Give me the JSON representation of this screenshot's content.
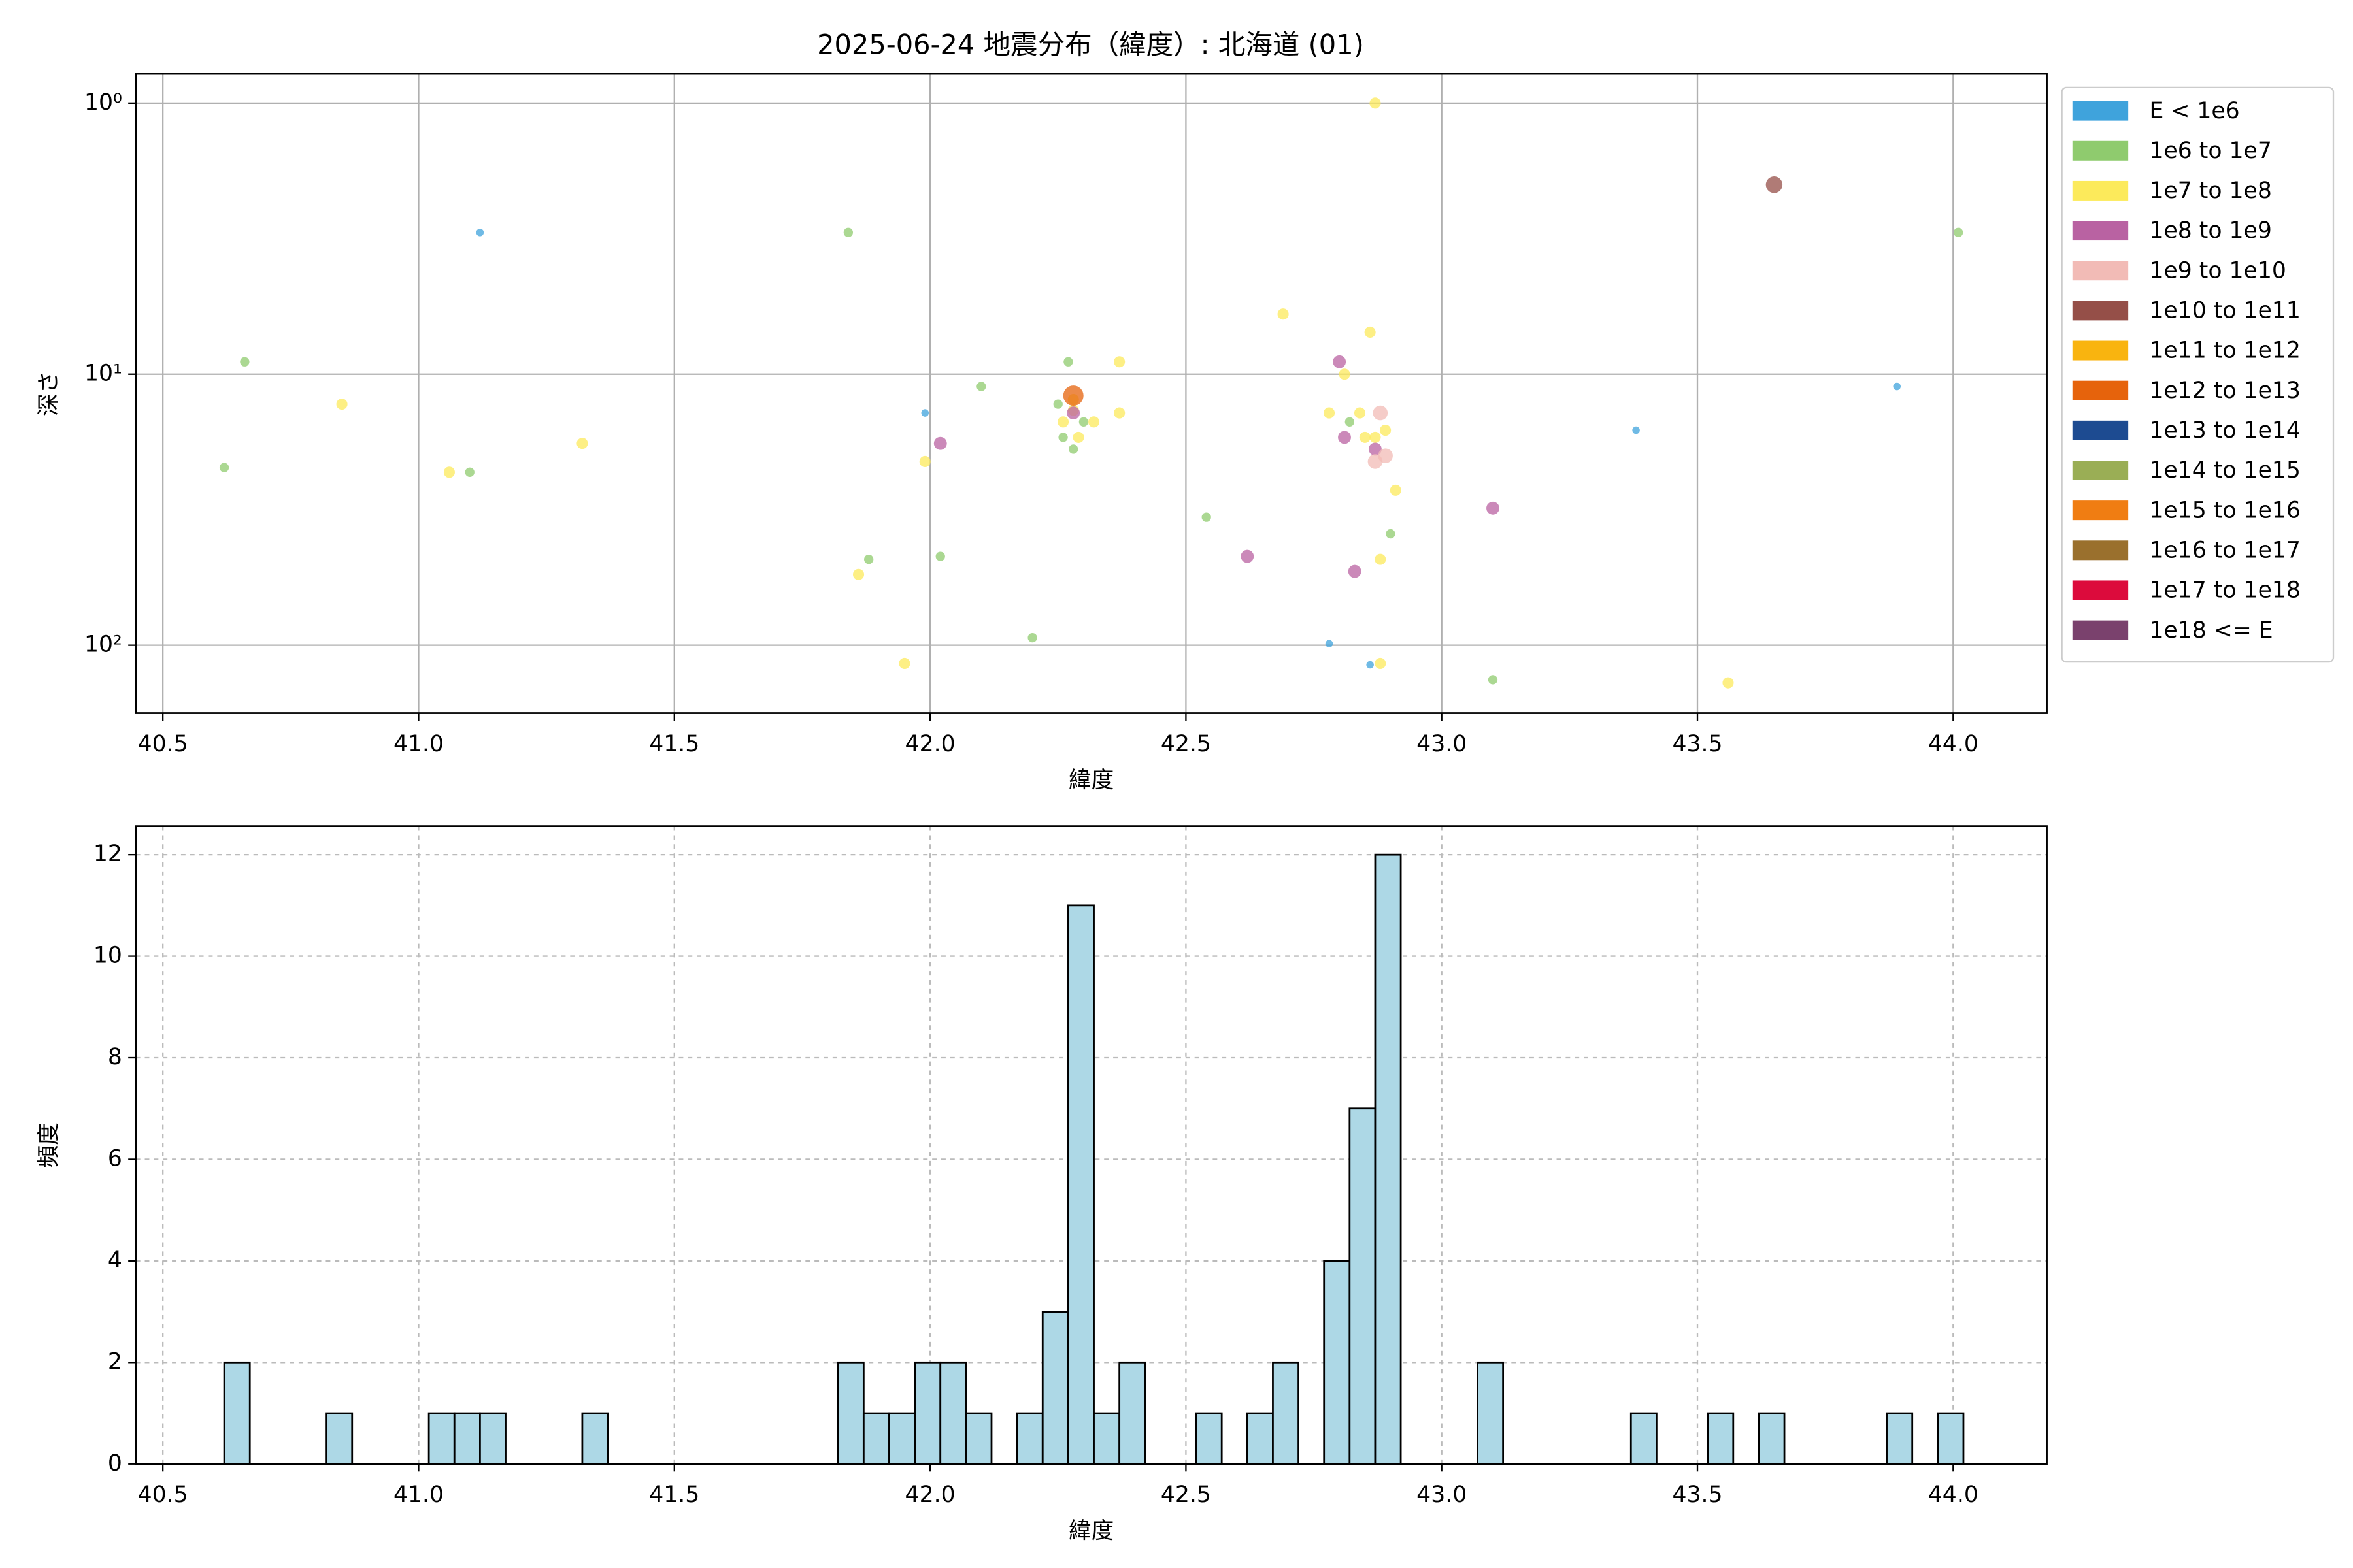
{
  "chart_data": [
    {
      "type": "scatter",
      "title": "2025-06-24 地震分布（緯度）: 北海道 (01)",
      "xlabel": "緯度",
      "ylabel": "深さ",
      "xlim": [
        40.447,
        44.183
      ],
      "xticks": [
        40.5,
        {
          "value": 41,
          "label": "41.0"
        },
        41.5,
        {
          "value": 42,
          "label": "42.0"
        },
        42.5,
        {
          "value": 43,
          "label": "43.0"
        },
        43.5,
        {
          "value": 44,
          "label": "44.0"
        }
      ],
      "ylim": [
        0.78,
        178
      ],
      "ylog": true,
      "yinvert": true,
      "yticks": [
        {
          "value": 1,
          "label": "10⁰"
        },
        {
          "value": 10,
          "label": "10¹"
        },
        {
          "value": 100,
          "label": "10²"
        }
      ],
      "grid": true,
      "grid_linestyle": "solid",
      "legend": "outside upper right",
      "series": [
        {
          "name": "E < 1e6",
          "color": "#3fa3dc",
          "x": [
            41.12,
            41.99,
            42.78,
            42.86,
            43.38,
            43.89
          ],
          "values": [
            3.0,
            13.9,
            98.7,
            118,
            16.1,
            11.1
          ]
        },
        {
          "name": "1e6 to 1e7",
          "color": "#8fcb6e",
          "x": [
            40.66,
            40.62,
            41.1,
            41.84,
            41.88,
            42.02,
            42.1,
            42.2,
            42.25,
            42.27,
            42.26,
            42.28,
            42.3,
            42.54,
            42.82,
            42.9,
            43.1,
            44.01
          ],
          "values": [
            9.0,
            22.1,
            23.0,
            3.0,
            48.2,
            47.0,
            11.1,
            93.8,
            12.9,
            9.0,
            17.1,
            18.9,
            15.0,
            33.7,
            15.0,
            38.8,
            134,
            3.0
          ]
        },
        {
          "name": "1e7 to 1e8",
          "color": "#fcea5b",
          "x": [
            40.85,
            41.06,
            41.32,
            41.86,
            41.95,
            41.99,
            42.26,
            42.28,
            42.28,
            42.29,
            42.32,
            42.37,
            42.37,
            42.69,
            42.78,
            42.81,
            42.84,
            42.86,
            42.85,
            42.87,
            42.89,
            42.91,
            42.88,
            42.88,
            42.87,
            43.56
          ],
          "values": [
            12.9,
            23.0,
            18.0,
            54.8,
            116.7,
            21.0,
            15.0,
            13.6,
            12.4,
            17.1,
            15.0,
            9.0,
            13.9,
            6.0,
            13.9,
            10,
            13.9,
            7.0,
            17.1,
            17.1,
            16.1,
            26.8,
            48.2,
            116.7,
            1.0,
            137.6
          ]
        },
        {
          "name": "1e8 to 1e9",
          "color": "#b962a2",
          "x": [
            42.02,
            42.28,
            42.62,
            42.8,
            42.81,
            42.83,
            42.87,
            43.1
          ],
          "values": [
            18.0,
            13.9,
            47.0,
            9.0,
            17.1,
            53.4,
            18.9,
            31.2
          ]
        },
        {
          "name": "1e9 to 1e10",
          "color": "#f2bbb6",
          "x": [
            42.88,
            42.87,
            42.89
          ],
          "values": [
            13.9,
            21.0,
            20.0
          ]
        },
        {
          "name": "1e10 to 1e11",
          "color": "#954f48",
          "x": [
            43.65
          ],
          "values": [
            2.0
          ]
        },
        {
          "name": "1e11 to 1e12",
          "color": "#f9b40f",
          "x": [],
          "values": []
        },
        {
          "name": "1e12 to 1e13",
          "color": "#e6630c",
          "x": [
            42.28
          ],
          "values": [
            12.0
          ]
        },
        {
          "name": "1e13 to 1e14",
          "color": "#1d4b91",
          "x": [],
          "values": []
        },
        {
          "name": "1e14 to 1e15",
          "color": "#9aae55",
          "x": [],
          "values": []
        },
        {
          "name": "1e15 to 1e16",
          "color": "#f07d12",
          "x": [],
          "values": []
        },
        {
          "name": "1e16 to 1e17",
          "color": "#9a702d",
          "x": [],
          "values": []
        },
        {
          "name": "1e17 to 1e18",
          "color": "#dc0b3c",
          "x": [],
          "values": []
        },
        {
          "name": "1e18 <= E",
          "color": "#7a416d",
          "x": [],
          "values": []
        }
      ]
    },
    {
      "type": "histogram",
      "xlabel": "緯度",
      "ylabel": "頻度",
      "xlim": [
        40.447,
        44.183
      ],
      "xticks": [
        40.5,
        {
          "value": 41,
          "label": "41.0"
        },
        41.5,
        {
          "value": 42,
          "label": "42.0"
        },
        42.5,
        {
          "value": 43,
          "label": "43.0"
        },
        43.5,
        {
          "value": 44,
          "label": "44.0"
        }
      ],
      "ylim": [
        0,
        12.56
      ],
      "yticks": [
        0,
        2,
        4,
        6,
        8,
        10,
        12
      ],
      "grid": true,
      "grid_linestyle": "dashed",
      "color": "#add8e6",
      "edgecolor": "#000000",
      "bins": [
        40.62,
        40.67,
        40.72,
        40.77,
        40.82,
        40.87,
        40.92,
        40.97,
        41.02,
        41.07,
        41.12,
        41.17,
        41.22,
        41.27,
        41.32,
        41.37,
        41.42,
        41.47,
        41.52,
        41.57,
        41.62,
        41.67,
        41.72,
        41.77,
        41.82,
        41.87,
        41.92,
        41.97,
        42.02,
        42.07,
        42.12,
        42.17,
        42.22,
        42.27,
        42.32,
        42.37,
        42.42,
        42.47,
        42.52,
        42.57,
        42.62,
        42.67,
        42.72,
        42.77,
        42.82,
        42.87,
        42.92,
        42.97,
        43.02,
        43.07,
        43.12,
        43.17,
        43.22,
        43.27,
        43.32,
        43.37,
        43.42,
        43.47,
        43.52,
        43.57,
        43.62,
        43.67,
        43.72,
        43.77,
        43.82,
        43.87,
        43.92,
        43.97,
        44.02
      ],
      "values": [
        2,
        0,
        0,
        0,
        1,
        0,
        0,
        0,
        1,
        1,
        1,
        0,
        0,
        0,
        1,
        0,
        0,
        0,
        0,
        0,
        0,
        0,
        0,
        0,
        2,
        1,
        1,
        2,
        2,
        1,
        0,
        1,
        3,
        11,
        1,
        2,
        0,
        0,
        1,
        0,
        1,
        2,
        0,
        4,
        7,
        12,
        0,
        0,
        0,
        2,
        0,
        0,
        0,
        0,
        0,
        1,
        0,
        0,
        1,
        0,
        1,
        0,
        0,
        0,
        0,
        1,
        0,
        1
      ]
    }
  ]
}
